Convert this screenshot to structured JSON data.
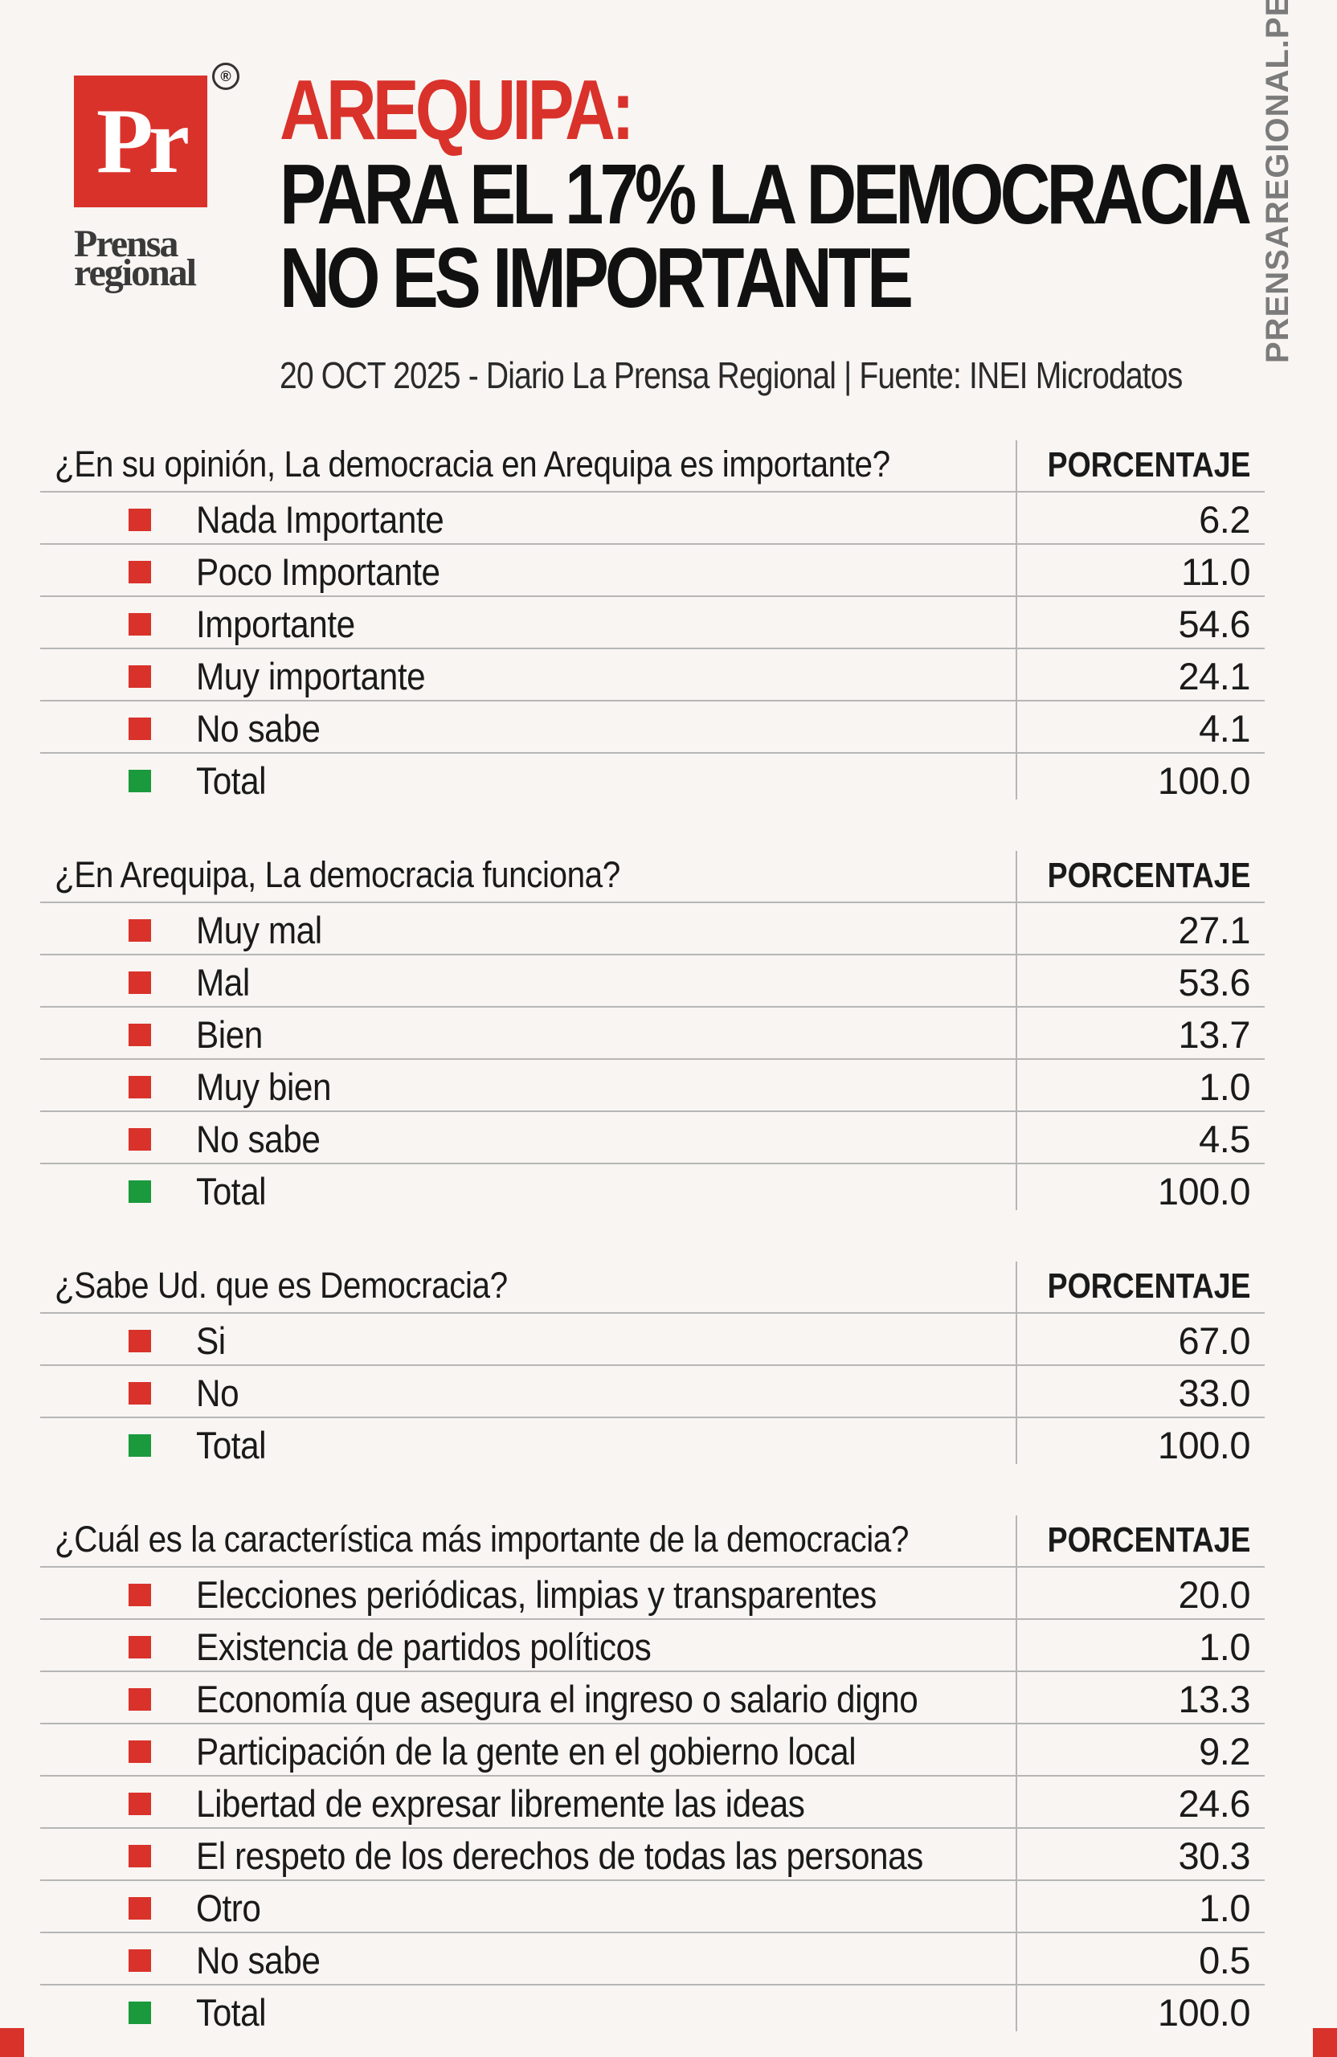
{
  "brand": {
    "logo_mark": "Pr",
    "logo_name": "Prensa regional",
    "registered": "®",
    "vertical_site": "PRENSAREGIONAL.PE"
  },
  "headline": {
    "kicker": "AREQUIPA:",
    "line1": "PARA EL 17% LA DEMOCRACIA",
    "line2": "NO ES IMPORTANTE",
    "dateline": "20 OCT 2025 - Diario La Prensa Regional | Fuente: INEI Microdatos"
  },
  "colors": {
    "accent": "#d9322b",
    "total": "#1a9a3c",
    "line": "#b6b6b6"
  },
  "tables": [
    {
      "question": "¿En su opinión, La democracia en Arequipa es importante?",
      "column": "PORCENTAJE",
      "rows": [
        {
          "label": "Nada Importante",
          "value": "6.2"
        },
        {
          "label": "Poco Importante",
          "value": "11.0"
        },
        {
          "label": "Importante",
          "value": "54.6"
        },
        {
          "label": "Muy importante",
          "value": "24.1"
        },
        {
          "label": "No sabe",
          "value": "4.1"
        },
        {
          "label": "Total",
          "value": "100.0"
        }
      ]
    },
    {
      "question": "¿En Arequipa, La democracia funciona?",
      "column": "PORCENTAJE",
      "rows": [
        {
          "label": "Muy mal",
          "value": "27.1"
        },
        {
          "label": "Mal",
          "value": "53.6"
        },
        {
          "label": "Bien",
          "value": "13.7"
        },
        {
          "label": "Muy bien",
          "value": "1.0"
        },
        {
          "label": "No sabe",
          "value": "4.5"
        },
        {
          "label": "Total",
          "value": "100.0"
        }
      ]
    },
    {
      "question": "¿Sabe Ud. que es Democracia?",
      "column": "PORCENTAJE",
      "rows": [
        {
          "label": "Si",
          "value": "67.0"
        },
        {
          "label": "No",
          "value": "33.0"
        },
        {
          "label": "Total",
          "value": "100.0"
        }
      ]
    },
    {
      "question": "¿Cuál es la característica más importante de la democracia?",
      "column": "PORCENTAJE",
      "rows": [
        {
          "label": "Elecciones periódicas, limpias y transparentes",
          "value": "20.0"
        },
        {
          "label": "Existencia de partidos políticos",
          "value": "1.0"
        },
        {
          "label": "Economía que asegura el ingreso o salario digno",
          "value": "13.3"
        },
        {
          "label": "Participación de la gente en el gobierno local",
          "value": "9.2"
        },
        {
          "label": "Libertad de expresar libremente las ideas",
          "value": "24.6"
        },
        {
          "label": "El respeto de los derechos de todas las personas",
          "value": "30.3"
        },
        {
          "label": "Otro",
          "value": "1.0"
        },
        {
          "label": "No sabe",
          "value": "0.5"
        },
        {
          "label": "Total",
          "value": "100.0"
        }
      ]
    }
  ]
}
